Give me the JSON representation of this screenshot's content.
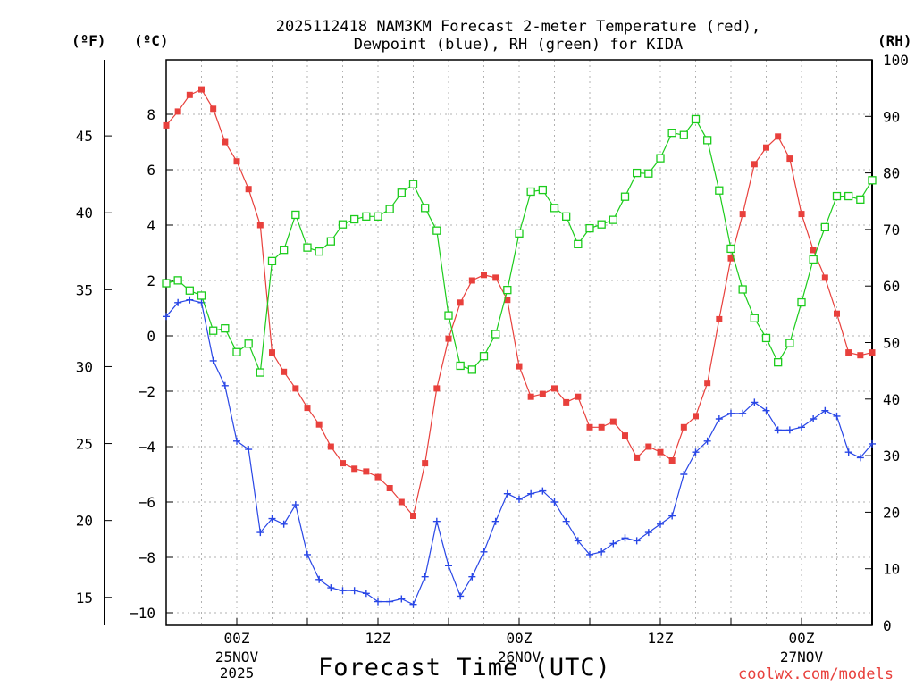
{
  "title": {
    "line1": "2025112418 NAM3KM Forecast 2-meter Temperature (red),",
    "line2": "Dewpoint (blue), RH (green) for KIDA"
  },
  "units": {
    "fahrenheit": "(ºF)",
    "celsius": "(ºC)",
    "rh": "(RH)"
  },
  "xlabel": "Forecast Time (UTC)",
  "credit": "coolwx.com/models",
  "colors": {
    "temperature": "#e8403c",
    "dewpoint": "#2846e6",
    "rh": "#1ccc1c",
    "grid": "#b0b0b0"
  },
  "chart_data": {
    "type": "line",
    "x_unit": "forecast hour from 2025-11-24 18Z",
    "x": [
      0,
      1,
      2,
      3,
      4,
      5,
      6,
      7,
      8,
      9,
      10,
      11,
      12,
      13,
      14,
      15,
      16,
      17,
      18,
      19,
      20,
      21,
      22,
      23,
      24,
      25,
      26,
      27,
      28,
      29,
      30,
      31,
      32,
      33,
      34,
      35,
      36,
      37,
      38,
      39,
      40,
      41,
      42,
      43,
      44,
      45,
      46,
      47,
      48,
      49,
      50,
      51,
      52,
      53,
      54,
      55,
      56,
      57,
      58,
      59,
      60
    ],
    "xlim": [
      0,
      60
    ],
    "x_ticks": [
      {
        "hour": 6,
        "label": "00Z",
        "sub1": "25NOV",
        "sub2": "2025"
      },
      {
        "hour": 18,
        "label": "12Z",
        "sub1": "",
        "sub2": ""
      },
      {
        "hour": 30,
        "label": "00Z",
        "sub1": "26NOV",
        "sub2": ""
      },
      {
        "hour": 42,
        "label": "12Z",
        "sub1": "",
        "sub2": ""
      },
      {
        "hour": 54,
        "label": "00Z",
        "sub1": "27NOV",
        "sub2": ""
      }
    ],
    "y_left_celsius": {
      "range": [
        -10.5,
        9.8
      ],
      "ticks": [
        -10,
        -8,
        -6,
        -4,
        -2,
        0,
        2,
        4,
        6,
        8
      ]
    },
    "y_left_fahrenheit": {
      "ticks": [
        15,
        20,
        25,
        30,
        35,
        40,
        45
      ]
    },
    "y_right_rh": {
      "range": [
        0,
        100
      ],
      "ticks": [
        0,
        10,
        20,
        30,
        40,
        50,
        60,
        70,
        80,
        90,
        100
      ]
    },
    "series": [
      {
        "name": "2-meter Temperature",
        "axis": "celsius",
        "marker": "filled-square",
        "values": [
          7.6,
          8.1,
          8.7,
          8.9,
          8.2,
          7.0,
          6.3,
          5.3,
          4.0,
          -0.6,
          -1.3,
          -1.9,
          -2.6,
          -3.2,
          -4.0,
          -4.6,
          -4.8,
          -4.9,
          -5.1,
          -5.5,
          -6.0,
          -6.5,
          -4.6,
          -1.9,
          -0.1,
          1.2,
          2.0,
          2.2,
          2.1,
          1.3,
          -1.1,
          -2.2,
          -2.1,
          -1.9,
          -2.4,
          -2.2,
          -3.3,
          -3.3,
          -3.1,
          -3.6,
          -4.4,
          -4.0,
          -4.2,
          -4.5,
          -3.3,
          -2.9,
          -1.7,
          0.6,
          2.8,
          4.4,
          6.2,
          6.8,
          7.2,
          6.4,
          4.4,
          3.1,
          2.1,
          0.8,
          -0.6,
          -0.7,
          -0.6
        ]
      },
      {
        "name": "Dewpoint",
        "axis": "celsius",
        "marker": "plus",
        "values": [
          0.7,
          1.2,
          1.3,
          1.2,
          -0.9,
          -1.8,
          -3.8,
          -4.1,
          -7.1,
          -6.6,
          -6.8,
          -6.1,
          -7.9,
          -8.8,
          -9.1,
          -9.2,
          -9.2,
          -9.3,
          -9.6,
          -9.6,
          -9.5,
          -9.7,
          -8.7,
          -6.7,
          -8.3,
          -9.4,
          -8.7,
          -7.8,
          -6.7,
          -5.7,
          -5.9,
          -5.7,
          -5.6,
          -6.0,
          -6.7,
          -7.4,
          -7.9,
          -7.8,
          -7.5,
          -7.3,
          -7.4,
          -7.1,
          -6.8,
          -6.5,
          -5.0,
          -4.2,
          -3.8,
          -3.0,
          -2.8,
          -2.8,
          -2.4,
          -2.7,
          -3.4,
          -3.4,
          -3.3,
          -3.0,
          -2.7,
          -2.9,
          -4.2,
          -4.4,
          -3.9
        ]
      },
      {
        "name": "Relative Humidity",
        "axis": "rh",
        "marker": "open-square",
        "values": [
          60.5,
          61.0,
          59.2,
          58.3,
          52.1,
          52.5,
          48.3,
          49.8,
          44.7,
          64.4,
          66.4,
          72.6,
          66.8,
          66.1,
          67.9,
          70.9,
          71.8,
          72.3,
          72.3,
          73.6,
          76.5,
          78.0,
          73.8,
          69.8,
          54.8,
          45.9,
          45.2,
          47.6,
          51.5,
          59.3,
          69.3,
          76.7,
          77.0,
          73.8,
          72.3,
          67.4,
          70.2,
          70.9,
          71.7,
          75.8,
          80.0,
          79.9,
          82.6,
          87.1,
          86.7,
          89.5,
          85.8,
          76.9,
          66.6,
          59.4,
          54.3,
          50.8,
          46.5,
          49.9,
          57.1,
          64.7,
          70.4,
          75.9,
          75.9,
          75.3,
          78.7
        ]
      }
    ]
  }
}
